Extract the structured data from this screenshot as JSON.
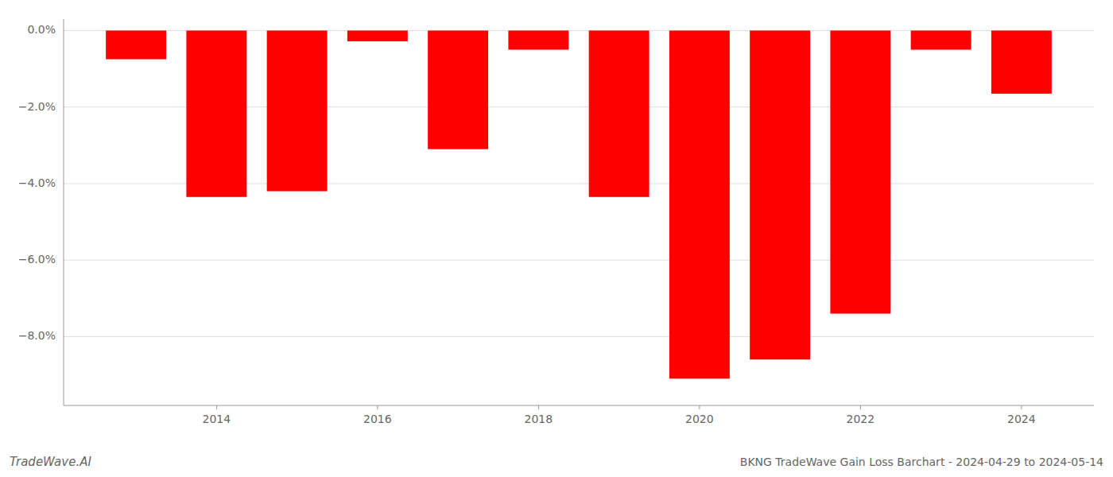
{
  "chart_data": {
    "type": "bar",
    "title": "BKNG TradeWave Gain Loss Barchart - 2024-04-29 to 2024-05-14",
    "annotations": [
      "TradeWave.AI"
    ],
    "x": [
      2013,
      2014,
      2015,
      2016,
      2017,
      2018,
      2019,
      2020,
      2021,
      2022,
      2023,
      2024
    ],
    "values": [
      -0.75,
      -4.35,
      -4.2,
      -0.28,
      -3.1,
      -0.5,
      -4.35,
      -9.1,
      -8.6,
      -7.4,
      -0.5,
      -1.65
    ],
    "color": "#ff0000",
    "xlim": [
      2012.1,
      2024.9
    ],
    "xticks": [
      2014,
      2016,
      2018,
      2020,
      2022,
      2024
    ],
    "ylim": [
      -9.8,
      0.3
    ],
    "yticks": [
      {
        "value": 0.0,
        "label": "0.0%"
      },
      {
        "value": -2.0,
        "label": "−2.0%"
      },
      {
        "value": -4.0,
        "label": "−4.0%"
      },
      {
        "value": -6.0,
        "label": "−6.0%"
      },
      {
        "value": -8.0,
        "label": "−8.0%"
      }
    ],
    "grid": true
  }
}
